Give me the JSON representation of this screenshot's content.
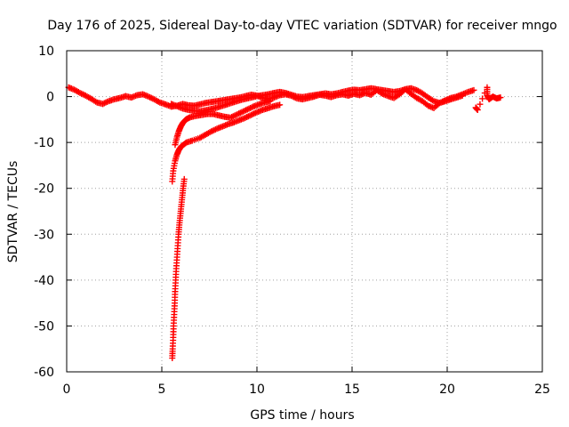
{
  "chart_data": {
    "type": "scatter",
    "title": "Day 176 of 2025, Sidereal Day-to-day VTEC variation (SDTVAR) for receiver mngo",
    "xlabel": "GPS time / hours",
    "ylabel": "SDTVAR / TECUs",
    "xlim": [
      0,
      25
    ],
    "ylim": [
      -60,
      10
    ],
    "xticks": [
      0,
      5,
      10,
      15,
      20,
      25
    ],
    "yticks": [
      10,
      0,
      -10,
      -20,
      -30,
      -40,
      -50,
      -60
    ],
    "grid": true,
    "marker": "plus",
    "series": [
      {
        "name": "SDTVAR",
        "color": "#ff0000",
        "tracks": [
          [
            [
              0.1,
              2.0
            ],
            [
              0.4,
              1.5
            ],
            [
              0.7,
              0.8
            ],
            [
              1.0,
              0.2
            ],
            [
              1.3,
              -0.5
            ],
            [
              1.6,
              -1.3
            ],
            [
              1.9,
              -1.6
            ],
            [
              2.2,
              -1.0
            ],
            [
              2.5,
              -0.6
            ],
            [
              2.8,
              -0.3
            ],
            [
              3.1,
              0.1
            ],
            [
              3.4,
              -0.2
            ],
            [
              3.7,
              0.3
            ],
            [
              4.0,
              0.5
            ],
            [
              4.3,
              0.0
            ],
            [
              4.6,
              -0.6
            ],
            [
              4.9,
              -1.3
            ],
            [
              5.2,
              -1.7
            ],
            [
              5.5,
              -2.2
            ],
            [
              5.8,
              -2.0
            ],
            [
              6.1,
              -1.6
            ],
            [
              6.4,
              -1.9
            ],
            [
              6.7,
              -2.0
            ],
            [
              7.0,
              -1.7
            ],
            [
              7.3,
              -1.4
            ],
            [
              7.6,
              -1.2
            ],
            [
              7.9,
              -1.0
            ],
            [
              8.2,
              -0.8
            ],
            [
              8.5,
              -0.6
            ],
            [
              8.8,
              -0.4
            ],
            [
              9.1,
              -0.2
            ],
            [
              9.4,
              0.1
            ],
            [
              9.7,
              0.4
            ],
            [
              10.0,
              0.2
            ],
            [
              10.3,
              -0.3
            ],
            [
              10.6,
              -0.5
            ],
            [
              10.9,
              -0.2
            ],
            [
              11.2,
              0.3
            ],
            [
              11.5,
              0.5
            ],
            [
              11.8,
              0.2
            ],
            [
              12.1,
              -0.4
            ],
            [
              12.4,
              -0.6
            ],
            [
              12.7,
              -0.3
            ],
            [
              13.0,
              0.0
            ],
            [
              13.3,
              0.4
            ],
            [
              13.6,
              0.2
            ],
            [
              13.9,
              -0.1
            ],
            [
              14.2,
              0.3
            ],
            [
              14.5,
              0.5
            ],
            [
              14.8,
              0.2
            ],
            [
              15.1,
              0.6
            ],
            [
              15.4,
              0.3
            ],
            [
              15.7,
              0.8
            ],
            [
              16.0,
              0.4
            ],
            [
              16.3,
              1.4
            ],
            [
              16.6,
              0.6
            ],
            [
              16.9,
              0.1
            ],
            [
              17.2,
              -0.3
            ],
            [
              17.5,
              0.5
            ],
            [
              17.8,
              1.6
            ],
            [
              18.1,
              0.6
            ],
            [
              18.4,
              -0.3
            ],
            [
              18.7,
              -1.0
            ],
            [
              19.0,
              -2.0
            ],
            [
              19.3,
              -2.5
            ],
            [
              19.6,
              -1.4
            ],
            [
              19.9,
              -0.8
            ],
            [
              20.2,
              -0.3
            ],
            [
              20.5,
              0.0
            ],
            [
              20.8,
              0.5
            ],
            [
              21.1,
              1.0
            ],
            [
              21.4,
              1.4
            ]
          ],
          [
            [
              5.5,
              -1.6
            ],
            [
              5.8,
              -2.1
            ],
            [
              6.1,
              -2.6
            ],
            [
              6.4,
              -2.9
            ],
            [
              6.7,
              -3.1
            ],
            [
              7.0,
              -3.2
            ],
            [
              7.3,
              -3.0
            ],
            [
              7.6,
              -2.7
            ],
            [
              7.9,
              -2.4
            ],
            [
              8.2,
              -2.0
            ],
            [
              8.5,
              -1.6
            ],
            [
              8.8,
              -1.2
            ],
            [
              9.1,
              -0.8
            ],
            [
              9.4,
              -0.5
            ],
            [
              9.7,
              -0.2
            ],
            [
              10.0,
              0.1
            ],
            [
              10.3,
              0.3
            ],
            [
              10.6,
              0.5
            ],
            [
              10.9,
              0.8
            ],
            [
              11.2,
              1.0
            ],
            [
              11.5,
              0.8
            ],
            [
              11.8,
              0.4
            ],
            [
              12.1,
              0.0
            ],
            [
              12.4,
              -0.1
            ],
            [
              12.7,
              0.1
            ],
            [
              13.0,
              0.3
            ],
            [
              13.3,
              0.5
            ],
            [
              13.6,
              0.7
            ],
            [
              13.9,
              0.5
            ],
            [
              14.2,
              0.7
            ],
            [
              14.5,
              1.0
            ],
            [
              14.8,
              1.3
            ],
            [
              15.1,
              1.5
            ],
            [
              15.4,
              1.4
            ],
            [
              15.7,
              1.6
            ],
            [
              16.0,
              1.8
            ],
            [
              16.3,
              1.6
            ],
            [
              16.6,
              1.4
            ],
            [
              16.9,
              1.2
            ],
            [
              17.2,
              1.0
            ],
            [
              17.5,
              1.2
            ],
            [
              17.8,
              1.6
            ],
            [
              18.1,
              1.8
            ],
            [
              18.4,
              1.4
            ],
            [
              18.7,
              0.7
            ],
            [
              19.0,
              -0.2
            ],
            [
              19.3,
              -1.0
            ],
            [
              19.6,
              -1.4
            ],
            [
              19.9,
              -1.0
            ],
            [
              20.2,
              -0.6
            ],
            [
              20.5,
              -0.2
            ],
            [
              20.8,
              0.2
            ]
          ],
          [
            [
              5.7,
              -10.5
            ],
            [
              5.8,
              -8.8
            ],
            [
              5.9,
              -7.5
            ],
            [
              6.0,
              -6.5
            ],
            [
              6.1,
              -5.8
            ],
            [
              6.2,
              -5.3
            ],
            [
              6.3,
              -4.9
            ],
            [
              6.5,
              -4.5
            ],
            [
              6.8,
              -4.2
            ],
            [
              7.1,
              -4.0
            ],
            [
              7.4,
              -3.8
            ],
            [
              7.7,
              -3.8
            ],
            [
              8.0,
              -4.1
            ],
            [
              8.3,
              -4.4
            ],
            [
              8.6,
              -4.6
            ],
            [
              8.9,
              -4.0
            ],
            [
              9.2,
              -3.4
            ],
            [
              9.5,
              -2.8
            ],
            [
              9.8,
              -2.2
            ],
            [
              10.1,
              -1.7
            ],
            [
              10.4,
              -1.3
            ],
            [
              10.7,
              -1.0
            ]
          ],
          [
            [
              5.55,
              -18.5
            ],
            [
              5.6,
              -16.2
            ],
            [
              5.7,
              -14.0
            ],
            [
              5.8,
              -12.6
            ],
            [
              5.9,
              -11.6
            ],
            [
              6.0,
              -11.0
            ],
            [
              6.1,
              -10.6
            ],
            [
              6.3,
              -10.0
            ],
            [
              6.6,
              -9.6
            ],
            [
              7.0,
              -9.0
            ],
            [
              7.3,
              -8.3
            ],
            [
              7.6,
              -7.6
            ],
            [
              7.9,
              -7.0
            ],
            [
              8.2,
              -6.5
            ],
            [
              8.5,
              -6.0
            ],
            [
              8.8,
              -5.6
            ],
            [
              9.1,
              -5.1
            ],
            [
              9.4,
              -4.6
            ],
            [
              9.7,
              -4.0
            ],
            [
              10.0,
              -3.4
            ],
            [
              10.3,
              -2.9
            ],
            [
              10.6,
              -2.5
            ],
            [
              10.9,
              -2.1
            ],
            [
              11.2,
              -1.8
            ]
          ],
          [
            [
              5.55,
              -57.0
            ],
            [
              5.57,
              -55.0
            ],
            [
              5.6,
              -52.5
            ],
            [
              5.62,
              -50.0
            ],
            [
              5.65,
              -47.5
            ],
            [
              5.68,
              -45.0
            ],
            [
              5.7,
              -42.5
            ],
            [
              5.73,
              -40.0
            ],
            [
              5.76,
              -37.5
            ],
            [
              5.8,
              -35.0
            ],
            [
              5.84,
              -32.5
            ],
            [
              5.88,
              -30.0
            ],
            [
              5.92,
              -28.0
            ],
            [
              5.97,
              -26.0
            ],
            [
              6.02,
              -24.0
            ],
            [
              6.07,
              -22.0
            ],
            [
              6.12,
              -20.0
            ],
            [
              6.18,
              -18.0
            ]
          ],
          [
            [
              21.5,
              -2.4
            ],
            [
              21.6,
              -2.9
            ],
            [
              22.1,
              2.0
            ],
            [
              22.1,
              0.3
            ],
            [
              22.2,
              -0.6
            ],
            [
              22.4,
              0.0
            ],
            [
              22.6,
              -0.4
            ],
            [
              22.8,
              -0.2
            ]
          ]
        ]
      }
    ]
  }
}
